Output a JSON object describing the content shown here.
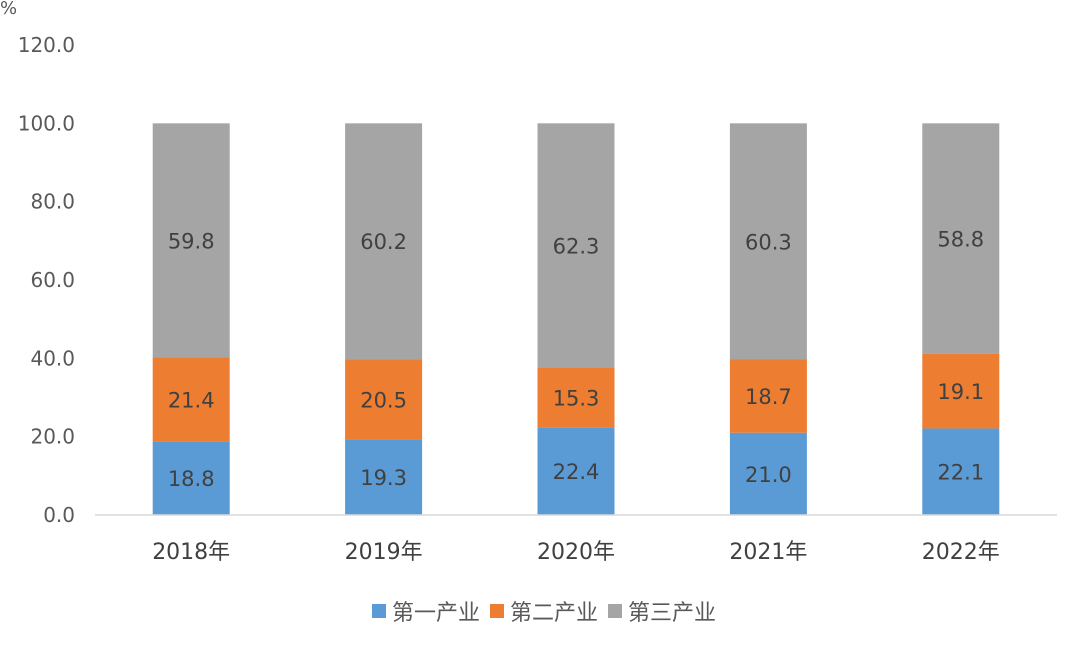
{
  "chart_data": {
    "type": "bar",
    "stacked": true,
    "title": "",
    "y_unit": "%",
    "categories": [
      "2018年",
      "2019年",
      "2020年",
      "2021年",
      "2022年"
    ],
    "series": [
      {
        "name": "第一产业",
        "color": "#5b9bd5",
        "values": [
          18.8,
          19.3,
          22.4,
          21.0,
          22.1
        ],
        "labels": [
          "18.8",
          "19.3",
          "22.4",
          "21.0",
          "22.1"
        ]
      },
      {
        "name": "第二产业",
        "color": "#ed7d31",
        "values": [
          21.4,
          20.5,
          15.3,
          18.7,
          19.1
        ],
        "labels": [
          "21.4",
          "20.5",
          "15.3",
          "18.7",
          "19.1"
        ]
      },
      {
        "name": "第三产业",
        "color": "#a5a5a5",
        "values": [
          59.8,
          60.2,
          62.3,
          60.3,
          58.8
        ],
        "labels": [
          "59.8",
          "60.2",
          "62.3",
          "60.3",
          "58.8"
        ]
      }
    ],
    "y_ticks": [
      "0.0",
      "20.0",
      "40.0",
      "60.0",
      "80.0",
      "100.0",
      "120.0"
    ],
    "ylim": [
      0,
      120
    ],
    "grid": false,
    "legend": "bottom"
  }
}
